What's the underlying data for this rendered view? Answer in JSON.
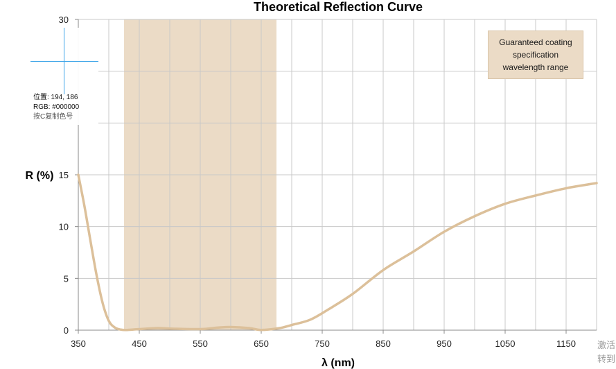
{
  "chart_data": {
    "type": "line",
    "title": "Theoretical Reflection Curve",
    "xlabel": "λ (nm)",
    "ylabel": "R (%)",
    "xlim": [
      350,
      1200
    ],
    "ylim": [
      0,
      30
    ],
    "x_ticks": [
      350,
      450,
      550,
      650,
      750,
      850,
      950,
      1050,
      1150
    ],
    "y_ticks": [
      0,
      5,
      10,
      15,
      30
    ],
    "grid": true,
    "band": {
      "x_range": [
        425,
        675
      ],
      "color": "#ebdbc6"
    },
    "legend": {
      "text": "Guaranteed coating specification wavelength range",
      "placement": "top-right"
    },
    "series": [
      {
        "color": "#dcc09a",
        "x": [
          350,
          360,
          370,
          380,
          390,
          400,
          410,
          420,
          430,
          450,
          480,
          500,
          550,
          580,
          600,
          630,
          650,
          680,
          700,
          730,
          760,
          800,
          850,
          900,
          950,
          1000,
          1050,
          1100,
          1150,
          1200
        ],
        "y": [
          15.0,
          12.0,
          8.6,
          5.3,
          2.6,
          0.9,
          0.25,
          0.05,
          0.02,
          0.1,
          0.2,
          0.15,
          0.1,
          0.25,
          0.3,
          0.2,
          0.02,
          0.2,
          0.5,
          1.0,
          2.0,
          3.5,
          5.8,
          7.6,
          9.5,
          11.0,
          12.2,
          13.0,
          13.7,
          14.2
        ]
      }
    ]
  },
  "picker": {
    "position": "位置: 194, 186",
    "rgb": "RGB: #000000",
    "hint": "按C复制色号"
  },
  "watermark": {
    "line1": "激活",
    "line2": "转到"
  }
}
